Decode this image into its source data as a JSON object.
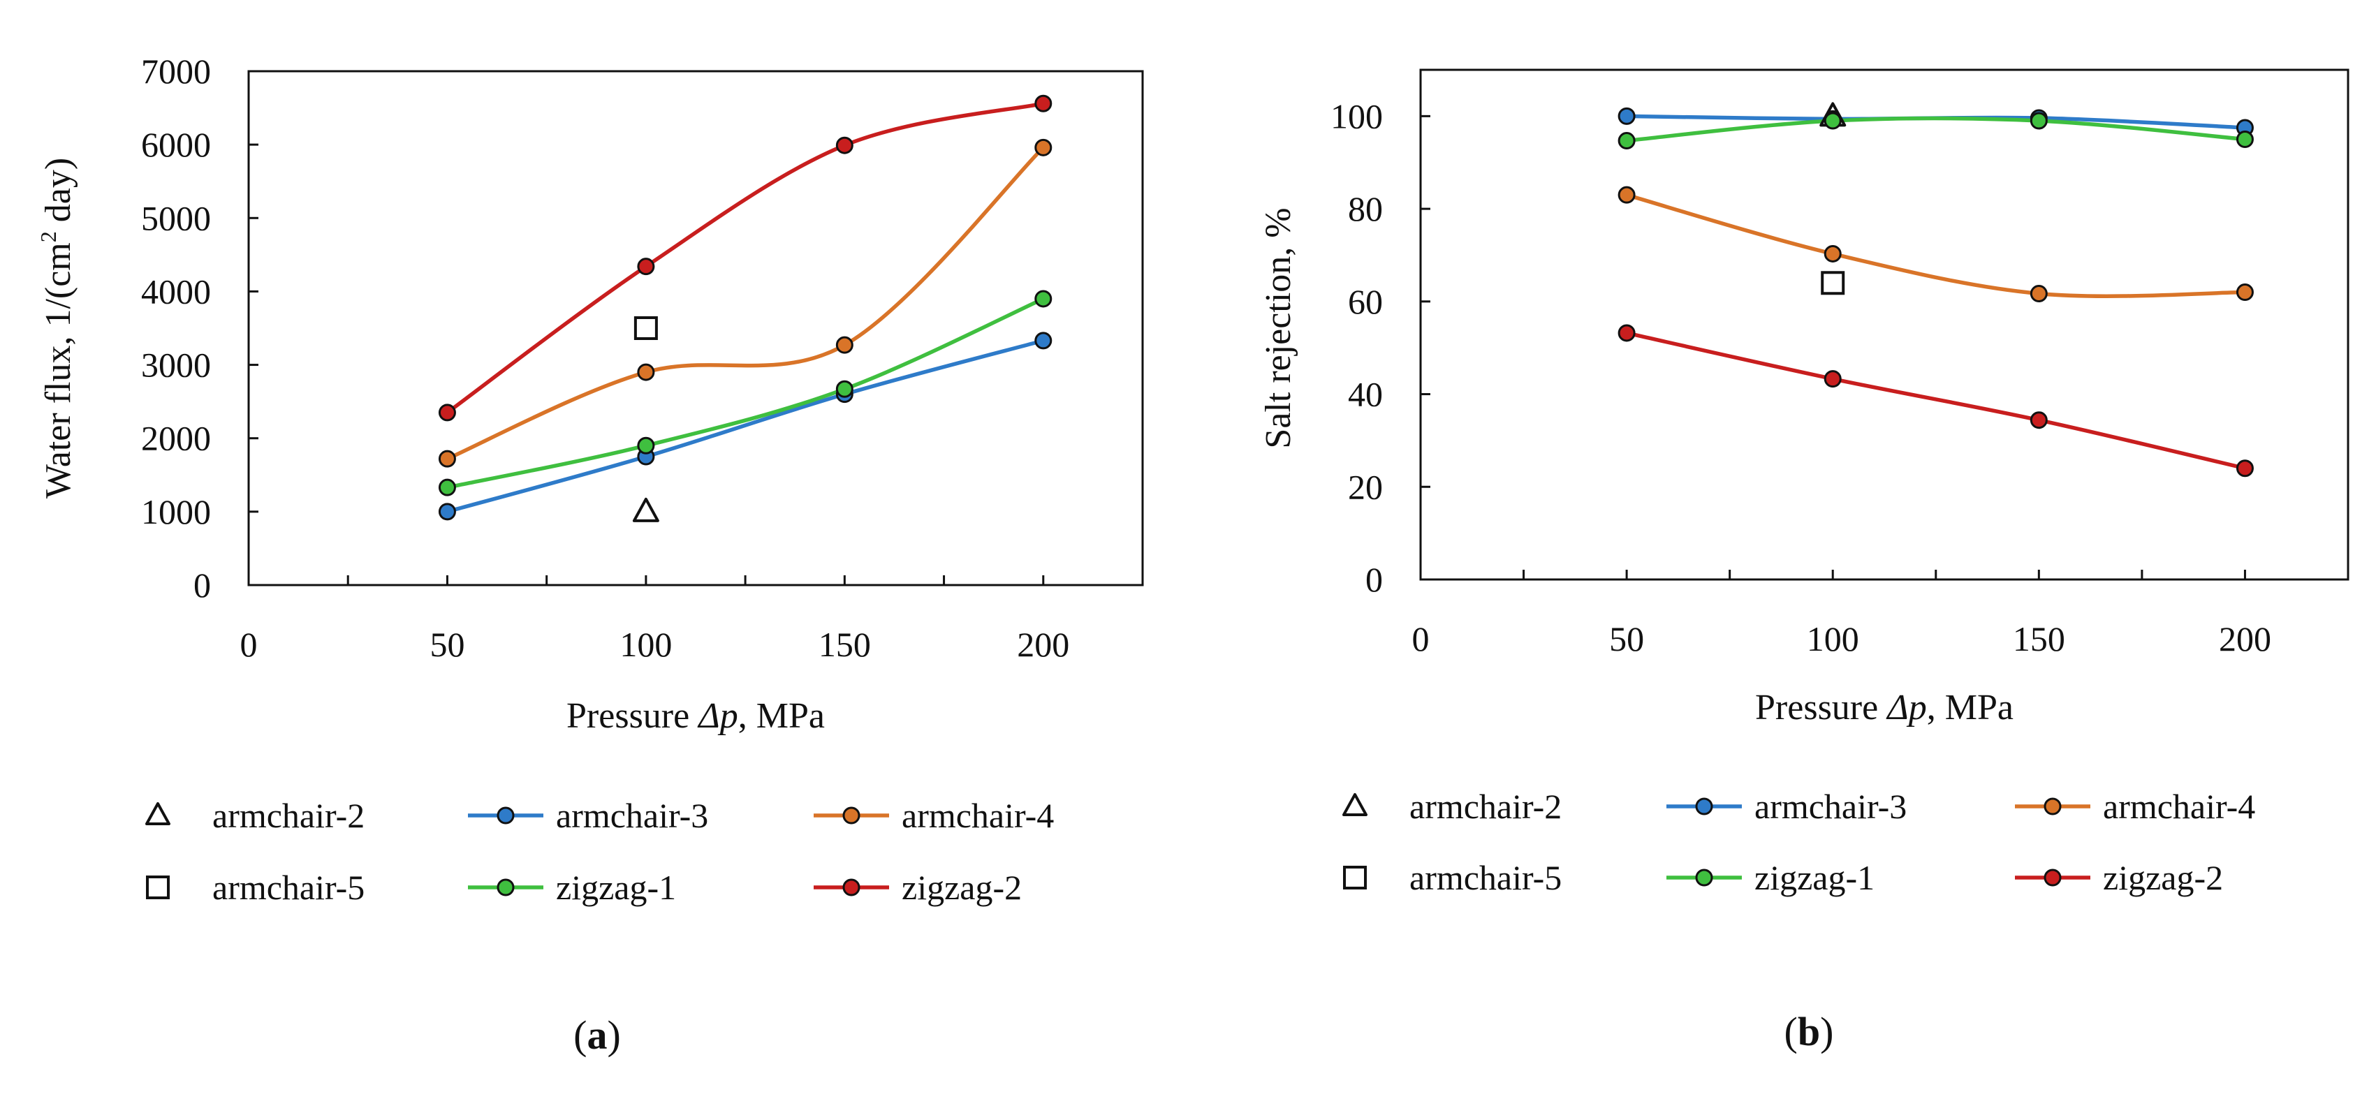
{
  "chart_data": [
    {
      "panel_label": "a",
      "type": "line",
      "xlabel_prefix": "Pressure ",
      "xlabel_symbol": "Δp",
      "xlabel_suffix": ", MPa",
      "ylabel_prefix": "Water flux, 1/(cm",
      "ylabel_sup": "2",
      "ylabel_suffix": " day)",
      "xlim": [
        0,
        225
      ],
      "ylim": [
        0,
        7000
      ],
      "xticks": [
        0,
        50,
        100,
        150,
        200
      ],
      "yticks": [
        0,
        1000,
        2000,
        3000,
        4000,
        5000,
        6000,
        7000
      ],
      "grid": false,
      "series": [
        {
          "name": "armchair-2",
          "style": "triangle",
          "color": "#111111",
          "x": [
            100
          ],
          "y": [
            1000
          ]
        },
        {
          "name": "armchair-3",
          "style": "line",
          "color": "#2E7BC9",
          "x": [
            50,
            100,
            150,
            200
          ],
          "y": [
            1000,
            1750,
            2600,
            3330
          ]
        },
        {
          "name": "armchair-4",
          "style": "line",
          "color": "#D97428",
          "x": [
            50,
            100,
            150,
            200
          ],
          "y": [
            1720,
            2900,
            3270,
            5960
          ]
        },
        {
          "name": "armchair-5",
          "style": "square",
          "color": "#111111",
          "x": [
            100
          ],
          "y": [
            3500
          ]
        },
        {
          "name": "zigzag-1",
          "style": "line",
          "color": "#3FBF3F",
          "x": [
            50,
            100,
            150,
            200
          ],
          "y": [
            1330,
            1900,
            2670,
            3900
          ]
        },
        {
          "name": "zigzag-2",
          "style": "line",
          "color": "#C81E1E",
          "x": [
            50,
            100,
            150,
            200
          ],
          "y": [
            2350,
            4340,
            5990,
            6560
          ]
        }
      ]
    },
    {
      "panel_label": "b",
      "type": "line",
      "xlabel_prefix": "Pressure ",
      "xlabel_symbol": "Δp",
      "xlabel_suffix": ", MPa",
      "ylabel_prefix": "Salt rejection, %",
      "ylabel_sup": "",
      "ylabel_suffix": "",
      "xlim": [
        0,
        225
      ],
      "ylim": [
        0,
        110
      ],
      "xticks": [
        0,
        50,
        100,
        150,
        200
      ],
      "yticks": [
        0,
        20,
        40,
        60,
        80,
        100
      ],
      "grid": false,
      "series": [
        {
          "name": "armchair-2",
          "style": "triangle",
          "color": "#111111",
          "x": [
            100
          ],
          "y": [
            100
          ]
        },
        {
          "name": "armchair-3",
          "style": "line",
          "color": "#2E7BC9",
          "x": [
            50,
            100,
            150,
            200
          ],
          "y": [
            100,
            99.4,
            99.6,
            97.5
          ]
        },
        {
          "name": "armchair-4",
          "style": "line",
          "color": "#D97428",
          "x": [
            50,
            100,
            150,
            200
          ],
          "y": [
            83,
            70.3,
            61.7,
            62
          ]
        },
        {
          "name": "armchair-5",
          "style": "square",
          "color": "#111111",
          "x": [
            100
          ],
          "y": [
            64
          ]
        },
        {
          "name": "zigzag-1",
          "style": "line",
          "color": "#3FBF3F",
          "x": [
            50,
            100,
            150,
            200
          ],
          "y": [
            94.7,
            99,
            99,
            95
          ]
        },
        {
          "name": "zigzag-2",
          "style": "line",
          "color": "#C81E1E",
          "x": [
            50,
            100,
            150,
            200
          ],
          "y": [
            53.2,
            43.3,
            34.4,
            24
          ]
        }
      ]
    }
  ]
}
